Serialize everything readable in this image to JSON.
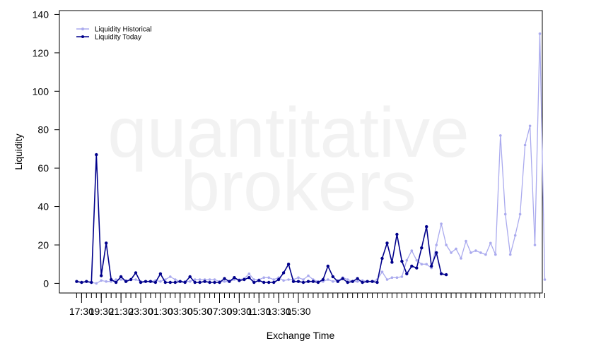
{
  "chart_data": {
    "type": "line",
    "xlabel": "Exchange Time",
    "ylabel": "Liquidity",
    "watermark": [
      "quantitative",
      "brokers"
    ],
    "ylim": [
      -5,
      142
    ],
    "yticks": [
      0,
      20,
      40,
      60,
      80,
      100,
      120,
      140
    ],
    "x_first_time": "17:00",
    "x_interval_minutes": 30,
    "xlim_index": [
      -3.5,
      94.5
    ],
    "xticks": [
      {
        "index": 1,
        "label": "17:30"
      },
      {
        "index": 5,
        "label": "19:30"
      },
      {
        "index": 9,
        "label": "21:30"
      },
      {
        "index": 13,
        "label": "23:30"
      },
      {
        "index": 17,
        "label": "01:30"
      },
      {
        "index": 21,
        "label": "03:30"
      },
      {
        "index": 25,
        "label": "05:30"
      },
      {
        "index": 29,
        "label": "07:30"
      },
      {
        "index": 33,
        "label": "09:30"
      },
      {
        "index": 37,
        "label": "11:30"
      },
      {
        "index": 41,
        "label": "13:30"
      },
      {
        "index": 45,
        "label": "15:30"
      }
    ],
    "legend_position": "top-left",
    "series": [
      {
        "name": "Liquidity Historical",
        "color": "#aaaaee",
        "values": [
          1,
          0.5,
          1,
          0.5,
          0,
          1.5,
          1,
          1,
          2,
          2,
          1.5,
          2,
          2,
          1,
          1,
          1,
          1.5,
          1,
          2,
          3.5,
          2,
          1,
          1,
          1,
          2,
          2,
          2,
          2,
          2,
          1,
          1,
          1,
          2,
          2,
          2.5,
          5,
          2,
          2,
          3,
          3,
          2,
          3,
          1.5,
          2,
          2,
          3,
          2,
          4,
          2,
          1,
          1,
          2,
          1,
          1.5,
          3,
          2,
          1,
          1,
          1.5,
          1,
          1,
          2,
          6,
          2,
          3,
          3,
          3.5,
          12,
          17,
          12,
          10,
          10,
          8,
          20,
          31,
          20,
          16,
          18,
          13,
          22,
          16,
          17,
          16,
          15,
          21,
          15,
          77,
          36,
          15,
          25,
          36,
          72,
          82,
          20,
          130,
          2
        ]
      },
      {
        "name": "Liquidity Today",
        "color": "#00008b",
        "values": [
          1,
          0.5,
          1,
          0.5,
          67,
          4,
          21,
          2,
          0.5,
          3.5,
          1,
          2,
          5.5,
          0.5,
          1,
          1,
          0.5,
          5,
          0.5,
          0.5,
          0.5,
          1,
          0.5,
          3.5,
          0.5,
          0.5,
          1,
          0.5,
          0.5,
          0.5,
          2.5,
          1,
          3,
          1.5,
          2,
          3,
          0.5,
          1.5,
          0.5,
          0.5,
          0.5,
          2,
          5.5,
          10,
          1,
          1,
          0.5,
          1,
          1,
          0.5,
          2,
          9,
          3.5,
          1,
          2.5,
          0.5,
          1,
          2.5,
          0.5,
          1,
          1,
          0.5,
          13,
          21,
          11,
          25.5,
          11.5,
          5,
          9,
          8,
          18.5,
          29.5,
          9,
          16,
          5,
          4.5
        ]
      }
    ]
  }
}
